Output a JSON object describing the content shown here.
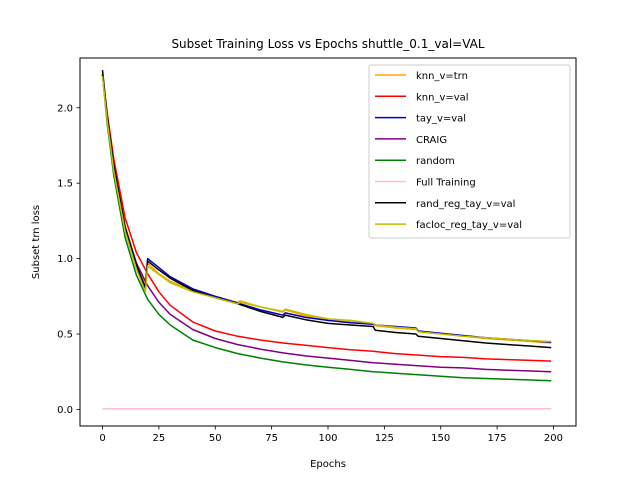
{
  "chart_data": {
    "type": "line",
    "title": "Subset Training Loss vs Epochs shuttle_0.1_val=VAL",
    "xlabel": "Epochs",
    "ylabel": "Subset trn loss",
    "xlim": [
      -10,
      210
    ],
    "ylim": [
      -0.11,
      2.33
    ],
    "x_ticks": [
      0,
      25,
      50,
      75,
      100,
      125,
      150,
      175,
      200
    ],
    "y_ticks": [
      0.0,
      0.5,
      1.0,
      1.5,
      2.0
    ],
    "x_tick_labels": [
      "0",
      "25",
      "50",
      "75",
      "100",
      "125",
      "150",
      "175",
      "200"
    ],
    "y_tick_labels": [
      "0.0",
      "0.5",
      "1.0",
      "1.5",
      "2.0"
    ],
    "grid": false,
    "legend_position": "top-right",
    "series": [
      {
        "name": "knn_v=trn",
        "color": "#ffa500",
        "x": [
          0,
          2,
          5,
          10,
          15,
          19,
          20,
          25,
          30,
          40,
          50,
          60,
          61,
          70,
          80,
          81,
          90,
          100,
          110,
          120,
          121,
          130,
          139,
          140,
          150,
          160,
          170,
          180,
          190,
          199
        ],
        "y": [
          2.22,
          1.95,
          1.62,
          1.22,
          0.97,
          0.83,
          0.97,
          0.9,
          0.85,
          0.79,
          0.75,
          0.71,
          0.72,
          0.68,
          0.645,
          0.66,
          0.62,
          0.59,
          0.58,
          0.565,
          0.555,
          0.54,
          0.53,
          0.515,
          0.5,
          0.485,
          0.47,
          0.46,
          0.45,
          0.44
        ]
      },
      {
        "name": "knn_v=val",
        "color": "#ff0000",
        "x": [
          0,
          2,
          5,
          10,
          15,
          20,
          25,
          30,
          40,
          50,
          60,
          70,
          80,
          90,
          100,
          110,
          120,
          130,
          140,
          150,
          160,
          170,
          180,
          190,
          199
        ],
        "y": [
          2.22,
          1.97,
          1.66,
          1.27,
          1.04,
          0.9,
          0.78,
          0.69,
          0.58,
          0.52,
          0.485,
          0.46,
          0.44,
          0.425,
          0.41,
          0.395,
          0.385,
          0.37,
          0.36,
          0.35,
          0.345,
          0.335,
          0.33,
          0.325,
          0.32
        ]
      },
      {
        "name": "tay_v=val",
        "color": "#0000cd",
        "x": [
          0,
          2,
          5,
          10,
          15,
          19,
          20,
          25,
          30,
          40,
          50,
          60,
          61,
          70,
          80,
          81,
          90,
          100,
          110,
          120,
          121,
          130,
          139,
          140,
          150,
          160,
          170,
          180,
          190,
          199
        ],
        "y": [
          2.22,
          1.93,
          1.6,
          1.2,
          0.95,
          0.81,
          1.0,
          0.94,
          0.88,
          0.8,
          0.75,
          0.705,
          0.7,
          0.66,
          0.625,
          0.64,
          0.61,
          0.59,
          0.575,
          0.565,
          0.56,
          0.55,
          0.54,
          0.52,
          0.505,
          0.49,
          0.475,
          0.465,
          0.455,
          0.445
        ]
      },
      {
        "name": "CRAIG",
        "color": "#800080",
        "x": [
          0,
          2,
          5,
          10,
          15,
          20,
          25,
          30,
          40,
          50,
          60,
          70,
          80,
          90,
          100,
          110,
          120,
          130,
          140,
          150,
          160,
          170,
          180,
          190,
          199
        ],
        "y": [
          2.22,
          1.93,
          1.6,
          1.2,
          0.97,
          0.82,
          0.71,
          0.63,
          0.53,
          0.47,
          0.43,
          0.4,
          0.375,
          0.355,
          0.34,
          0.325,
          0.31,
          0.3,
          0.29,
          0.28,
          0.275,
          0.265,
          0.26,
          0.255,
          0.25
        ]
      },
      {
        "name": "random",
        "color": "#008000",
        "x": [
          0,
          2,
          5,
          10,
          15,
          20,
          25,
          30,
          40,
          50,
          60,
          70,
          80,
          90,
          100,
          110,
          120,
          130,
          140,
          150,
          160,
          170,
          180,
          190,
          199
        ],
        "y": [
          2.22,
          1.9,
          1.55,
          1.14,
          0.89,
          0.73,
          0.63,
          0.56,
          0.46,
          0.41,
          0.37,
          0.34,
          0.315,
          0.295,
          0.28,
          0.265,
          0.25,
          0.24,
          0.23,
          0.22,
          0.21,
          0.205,
          0.2,
          0.195,
          0.19
        ]
      },
      {
        "name": "Full Training",
        "color": "#ffc0cb",
        "x": [
          0,
          199
        ],
        "y": [
          0.005,
          0.005
        ]
      },
      {
        "name": "rand_reg_tay_v=val",
        "color": "#000000",
        "x": [
          0,
          2,
          5,
          10,
          15,
          19,
          20,
          25,
          30,
          40,
          50,
          60,
          61,
          70,
          80,
          81,
          90,
          100,
          110,
          120,
          121,
          130,
          139,
          140,
          150,
          160,
          170,
          180,
          190,
          199
        ],
        "y": [
          2.25,
          1.95,
          1.62,
          1.21,
          0.96,
          0.8,
          0.985,
          0.925,
          0.87,
          0.79,
          0.74,
          0.7,
          0.695,
          0.65,
          0.61,
          0.625,
          0.595,
          0.57,
          0.56,
          0.55,
          0.525,
          0.51,
          0.5,
          0.485,
          0.47,
          0.455,
          0.44,
          0.43,
          0.42,
          0.41
        ]
      },
      {
        "name": "facloc_reg_tay_v=val",
        "color": "#bfbf00",
        "x": [
          0,
          2,
          5,
          10,
          15,
          19,
          20,
          25,
          30,
          40,
          50,
          60,
          61,
          70,
          80,
          81,
          90,
          100,
          110,
          120,
          121,
          130,
          139,
          140,
          150,
          160,
          170,
          180,
          190,
          199
        ],
        "y": [
          2.21,
          1.92,
          1.58,
          1.18,
          0.93,
          0.78,
          0.95,
          0.895,
          0.84,
          0.78,
          0.74,
          0.7,
          0.71,
          0.68,
          0.65,
          0.665,
          0.63,
          0.6,
          0.59,
          0.57,
          0.56,
          0.545,
          0.535,
          0.515,
          0.5,
          0.485,
          0.475,
          0.465,
          0.455,
          0.45
        ]
      }
    ]
  }
}
